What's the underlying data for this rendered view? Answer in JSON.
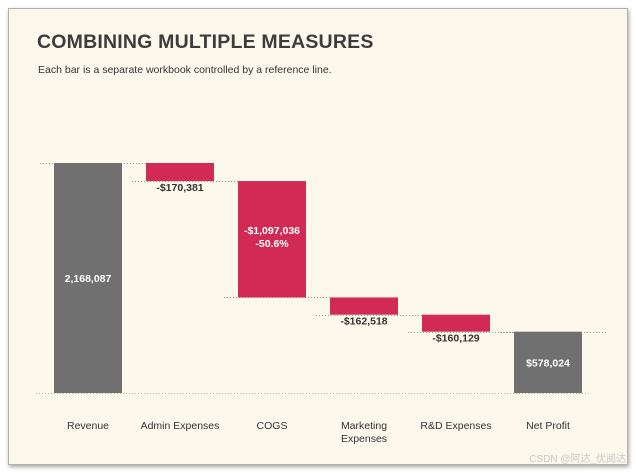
{
  "title": "COMBINING MULTIPLE MEASURES",
  "subtitle": "Each bar is a separate workbook controlled by a reference line.",
  "watermark": "CSDN @阿达_优阅达",
  "chart_data": {
    "type": "waterfall",
    "ylim": [
      0,
      2168087
    ],
    "colors": {
      "total": "#707070",
      "decrease": "#d02a55"
    },
    "bars": [
      {
        "category": "Revenue",
        "kind": "total",
        "start": 0,
        "end": 2168087,
        "labels": [
          "2,168,087"
        ]
      },
      {
        "category": "Admin Expenses",
        "kind": "decrease",
        "start": 2168087,
        "end": 1997706,
        "labels": [
          "-$170,381"
        ]
      },
      {
        "category": "COGS",
        "kind": "decrease",
        "start": 1997706,
        "end": 900670,
        "labels": [
          "-$1,097,036",
          "-50.6%"
        ]
      },
      {
        "category": "Marketing Expenses",
        "kind": "decrease",
        "start": 900670,
        "end": 738152,
        "labels": [
          "-$162,518"
        ]
      },
      {
        "category": "R&D Expenses",
        "kind": "decrease",
        "start": 738152,
        "end": 578023,
        "labels": [
          "-$160,129"
        ]
      },
      {
        "category": "Net Profit",
        "kind": "total",
        "start": 0,
        "end": 578024,
        "labels": [
          "$578,024"
        ]
      }
    ]
  }
}
